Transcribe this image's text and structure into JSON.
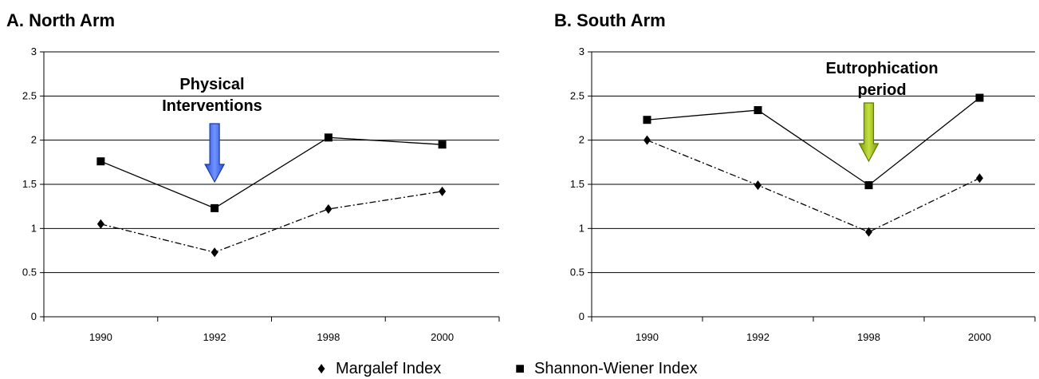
{
  "chart_data": [
    {
      "type": "line",
      "title": "A. North Arm",
      "categories": [
        "1990",
        "1992",
        "1998",
        "2000"
      ],
      "series": [
        {
          "name": "Margalef Index",
          "marker": "diamond",
          "line": "dash-dot",
          "values": [
            1.05,
            0.73,
            1.22,
            1.42
          ]
        },
        {
          "name": "Shannon-Wiener Index",
          "marker": "square",
          "line": "solid",
          "values": [
            1.76,
            1.23,
            2.03,
            1.95
          ]
        }
      ],
      "ylim": [
        0,
        3
      ],
      "yticks": [
        "0",
        "0.5",
        "1",
        "1.5",
        "2",
        "2.5",
        "3"
      ],
      "grid": true,
      "annotation": {
        "lines": [
          "Physical",
          "Interventions"
        ],
        "arrow_color": "#3366ee",
        "category_index": 1
      }
    },
    {
      "type": "line",
      "title": "B. South Arm",
      "categories": [
        "1990",
        "1992",
        "1998",
        "2000"
      ],
      "series": [
        {
          "name": "Margalef Index",
          "marker": "diamond",
          "line": "dash-dot",
          "values": [
            2.0,
            1.49,
            0.96,
            1.57
          ]
        },
        {
          "name": "Shannon-Wiener Index",
          "marker": "square",
          "line": "solid",
          "values": [
            2.23,
            2.34,
            1.49,
            2.48
          ]
        }
      ],
      "ylim": [
        0,
        3
      ],
      "yticks": [
        "0",
        "0.5",
        "1",
        "1.5",
        "2",
        "2.5",
        "3"
      ],
      "grid": true,
      "annotation": {
        "lines": [
          "Eutrophication",
          "period"
        ],
        "arrow_color": "#99bb00",
        "category_index": 2
      }
    }
  ],
  "legend": {
    "placement": "bottom-center",
    "items": [
      {
        "marker": "♦",
        "label": "Margalef Index"
      },
      {
        "marker": "■",
        "label": "Shannon-Wiener Index"
      }
    ]
  }
}
